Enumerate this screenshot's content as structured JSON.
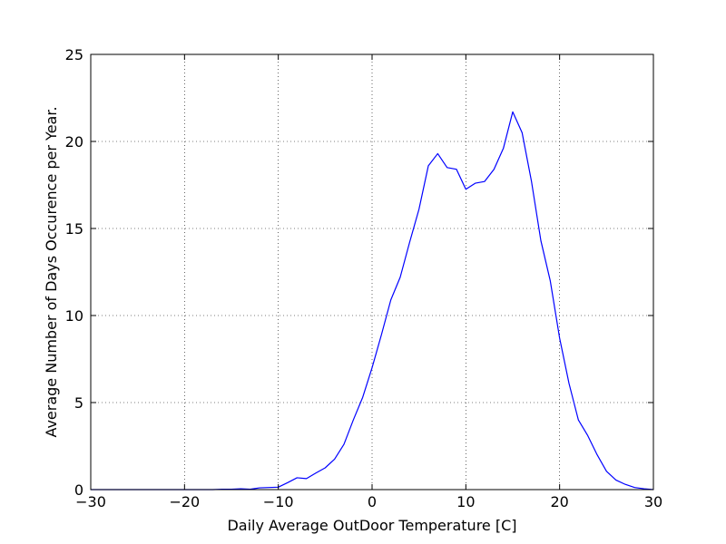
{
  "chart_data": {
    "type": "line",
    "title": "",
    "xlabel": "Daily Average OutDoor Temperature [C]",
    "ylabel": "Average Number of Days Occurence per Year.",
    "xlim": [
      -30,
      30
    ],
    "ylim": [
      0,
      25
    ],
    "xticks": [
      -30,
      -20,
      -10,
      0,
      10,
      20,
      30
    ],
    "yticks": [
      0,
      5,
      10,
      15,
      20,
      25
    ],
    "xtick_labels": [
      "−30",
      "−20",
      "−10",
      "0",
      "10",
      "20",
      "30"
    ],
    "ytick_labels": [
      "0",
      "5",
      "10",
      "15",
      "20",
      "25"
    ],
    "grid": true,
    "line_color": "#0000ff",
    "series": [
      {
        "x": [
          -30,
          -29,
          -28,
          -27,
          -26,
          -25,
          -24,
          -23,
          -22,
          -21,
          -20,
          -19,
          -18,
          -17,
          -16,
          -15,
          -14,
          -13,
          -12,
          -11,
          -10,
          -9,
          -8,
          -7,
          -6,
          -5,
          -4,
          -3,
          -2,
          -1,
          0,
          1,
          2,
          3,
          4,
          5,
          6,
          7,
          8,
          9,
          10,
          11,
          12,
          13,
          14,
          15,
          16,
          17,
          18,
          19,
          20,
          21,
          22,
          23,
          24,
          25,
          26,
          27,
          28,
          29,
          30
        ],
        "values": [
          0,
          0,
          0,
          0,
          0,
          0,
          0,
          0,
          0,
          0,
          0,
          0,
          0,
          0,
          0.02,
          0.02,
          0.05,
          0.02,
          0.1,
          0.12,
          0.14,
          0.4,
          0.68,
          0.63,
          0.95,
          1.25,
          1.75,
          2.6,
          4.0,
          5.3,
          7.0,
          8.9,
          10.9,
          12.2,
          14.2,
          16.1,
          18.6,
          19.3,
          18.5,
          18.4,
          17.25,
          17.6,
          17.7,
          18.4,
          19.6,
          21.7,
          20.5,
          17.7,
          14.3,
          12.0,
          8.7,
          6.1,
          4.0,
          3.1,
          2.0,
          1.05,
          0.55,
          0.3,
          0.12,
          0.05,
          0
        ]
      }
    ]
  }
}
